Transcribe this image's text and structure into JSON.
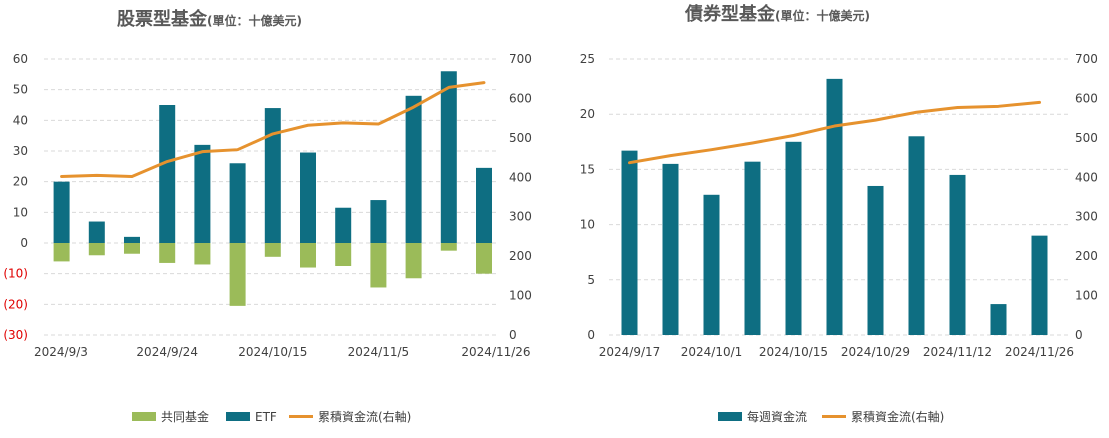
{
  "chart_data": [
    {
      "type": "bar",
      "title": "股票型基金",
      "subtitle": "(單位：十億美元)",
      "categories": [
        "2024/9/3",
        "2024/9/10",
        "2024/9/17",
        "2024/9/24",
        "2024/10/1",
        "2024/10/8",
        "2024/10/15",
        "2024/10/22",
        "2024/10/29",
        "2024/11/5",
        "2024/11/12",
        "2024/11/19",
        "2024/11/26"
      ],
      "x_tick_labels": [
        "2024/9/3",
        "2024/9/24",
        "2024/10/15",
        "2024/11/5",
        "2024/11/26"
      ],
      "series": [
        {
          "name": "共同基金",
          "kind": "bar",
          "axis": "left",
          "color": "#9bbb59",
          "values": [
            -6,
            -4,
            -3.5,
            -6.5,
            -7,
            -20.5,
            -4.5,
            -8,
            -7.5,
            -14.5,
            -11.5,
            -2.5,
            -10
          ]
        },
        {
          "name": "ETF",
          "kind": "bar",
          "axis": "left",
          "color": "#0e6e82",
          "values": [
            20,
            7,
            2,
            45,
            32,
            26,
            44,
            29.5,
            11.5,
            14,
            48,
            56,
            24.5
          ]
        },
        {
          "name": "累積資金流(右軸)",
          "kind": "line",
          "axis": "right",
          "color": "#e6922e",
          "values": [
            402,
            405,
            402,
            440,
            465,
            470,
            510,
            532,
            538,
            535,
            578,
            628,
            640
          ]
        }
      ],
      "y_left": {
        "min": -30,
        "max": 60,
        "step": 10,
        "ticks": [
          "(30)",
          "(20)",
          "(10)",
          "0",
          "10",
          "20",
          "30",
          "40",
          "50",
          "60"
        ]
      },
      "y_right": {
        "min": 0,
        "max": 700,
        "step": 100,
        "ticks": [
          "0",
          "100",
          "200",
          "300",
          "400",
          "500",
          "600",
          "700"
        ]
      },
      "grid": true,
      "legend_position": "bottom"
    },
    {
      "type": "bar",
      "title": "債券型基金",
      "subtitle": "(單位：十億美元)",
      "categories": [
        "2024/9/17",
        "2024/9/24",
        "2024/10/1",
        "2024/10/8",
        "2024/10/15",
        "2024/10/22",
        "2024/10/29",
        "2024/11/5",
        "2024/11/12",
        "2024/11/19",
        "2024/11/26"
      ],
      "x_tick_labels": [
        "2024/9/17",
        "2024/10/1",
        "2024/10/15",
        "2024/10/29",
        "2024/11/12",
        "2024/11/26"
      ],
      "series": [
        {
          "name": "每週資金流",
          "kind": "bar",
          "axis": "left",
          "color": "#0e6e82",
          "values": [
            16.7,
            15.5,
            12.7,
            15.7,
            17.5,
            23.2,
            13.5,
            18,
            14.5,
            2.8,
            9
          ]
        },
        {
          "name": "累積資金流(右軸)",
          "kind": "line",
          "axis": "right",
          "color": "#e6922e",
          "values": [
            437,
            455,
            470,
            487,
            506,
            530,
            545,
            565,
            577,
            580,
            590
          ]
        }
      ],
      "y_left": {
        "min": 0,
        "max": 25,
        "step": 5,
        "ticks": [
          "0",
          "5",
          "10",
          "15",
          "20",
          "25"
        ]
      },
      "y_right": {
        "min": 0,
        "max": 700,
        "step": 100,
        "ticks": [
          "0",
          "100",
          "200",
          "300",
          "400",
          "500",
          "600",
          "700"
        ]
      },
      "grid": true,
      "legend_position": "bottom"
    }
  ]
}
